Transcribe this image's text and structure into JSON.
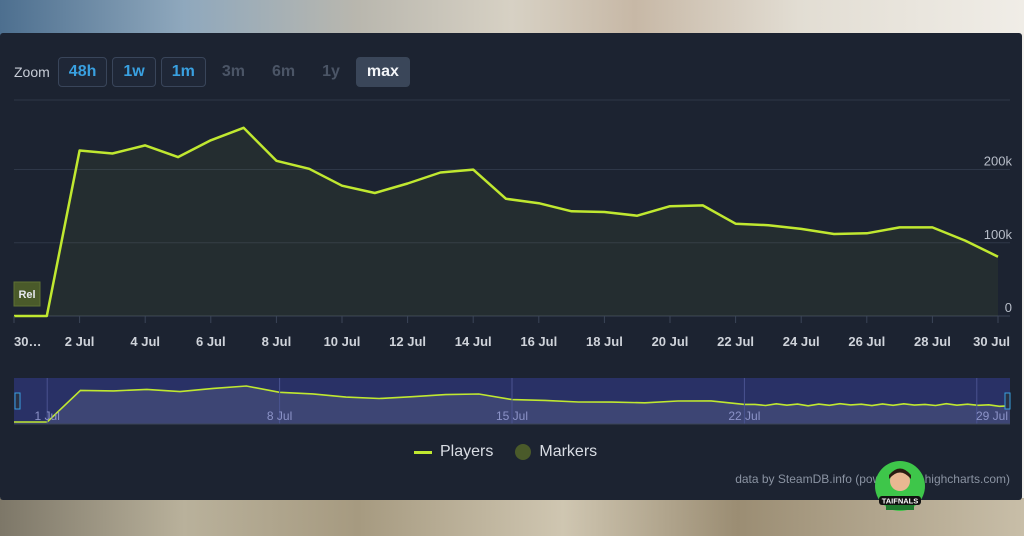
{
  "zoom": {
    "label": "Zoom",
    "buttons": [
      {
        "label": "48h",
        "state": "active"
      },
      {
        "label": "1w",
        "state": "active"
      },
      {
        "label": "1m",
        "state": "active"
      },
      {
        "label": "3m",
        "state": "dim"
      },
      {
        "label": "6m",
        "state": "dim"
      },
      {
        "label": "1y",
        "state": "dim"
      },
      {
        "label": "max",
        "state": "selected"
      }
    ]
  },
  "chart_data": {
    "type": "area",
    "x": [
      0,
      1,
      2,
      3,
      4,
      5,
      6,
      7,
      8,
      9,
      10,
      11,
      12,
      13,
      14,
      15,
      16,
      17,
      18,
      19,
      20,
      21,
      22,
      23,
      24,
      25,
      26,
      27,
      28,
      29,
      30
    ],
    "x_tick_labels": [
      "30…",
      "2 Jul",
      "4 Jul",
      "6 Jul",
      "8 Jul",
      "10 Jul",
      "12 Jul",
      "14 Jul",
      "16 Jul",
      "18 Jul",
      "20 Jul",
      "22 Jul",
      "24 Jul",
      "26 Jul",
      "28 Jul",
      "30 Jul"
    ],
    "x_tick_positions": [
      0,
      2,
      4,
      6,
      8,
      10,
      12,
      14,
      16,
      18,
      20,
      22,
      24,
      26,
      28,
      30
    ],
    "y_ticks": [
      0,
      100000,
      200000
    ],
    "y_tick_labels": [
      "0",
      "100k",
      "200k"
    ],
    "ylim": [
      0,
      295000
    ],
    "series": [
      {
        "name": "Players",
        "color": "#c0e830",
        "values": [
          0,
          0,
          226000,
          222000,
          233000,
          217000,
          240000,
          257000,
          212000,
          201000,
          178000,
          168000,
          181000,
          196000,
          200000,
          160000,
          154000,
          143000,
          142000,
          137000,
          150000,
          151000,
          126000,
          124000,
          119000,
          112000,
          113000,
          121000,
          121000,
          103000,
          81000
        ]
      }
    ],
    "markers": [
      {
        "x": 0,
        "label": "Rel"
      }
    ],
    "navigator": {
      "labels": [
        "1 Jul",
        "8 Jul",
        "15 Jul",
        "22 Jul",
        "29 Jul"
      ],
      "label_positions": [
        1,
        8,
        15,
        22,
        29
      ],
      "tail_values": [
        126000,
        118000,
        130000,
        120000,
        128000,
        116000,
        128000,
        119000,
        131000,
        122000,
        127000,
        117000,
        129000,
        119000,
        130000,
        121000,
        126000,
        118000,
        131000,
        120000,
        127000,
        119000,
        123000,
        112000,
        116000
      ]
    },
    "legend": [
      {
        "label": "Players",
        "type": "line",
        "color": "#c0e830"
      },
      {
        "label": "Markers",
        "type": "dot",
        "color": "#4a5a2a"
      }
    ],
    "grid": true
  },
  "credits": "data by SteamDB.info (powered by highcharts.com)",
  "avatar": {
    "text": "TAIFNALS",
    "icon": "streamer-avatar-icon"
  }
}
